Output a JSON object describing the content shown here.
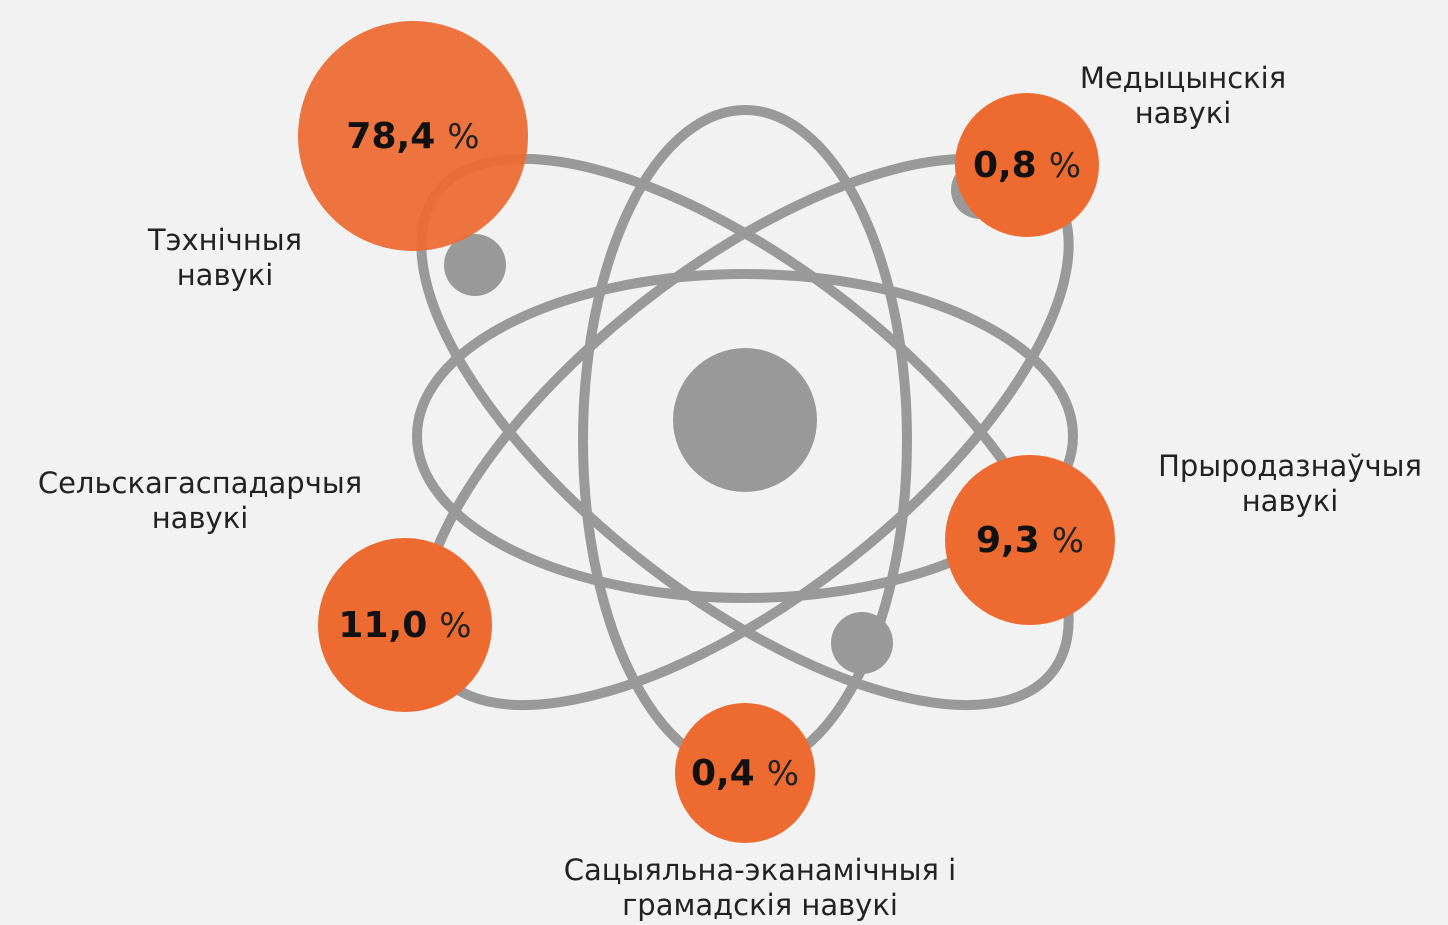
{
  "nodes": [
    {
      "label": [
        "Тэхнічныя",
        "навукі"
      ],
      "value": "78,4",
      "unit": "%"
    },
    {
      "label": [
        "Медыцынскія",
        "навукі"
      ],
      "value": "0,8",
      "unit": "%"
    },
    {
      "label": [
        "Прыродазнаўчыя",
        "навукі"
      ],
      "value": "9,3",
      "unit": "%"
    },
    {
      "label": [
        "Сацыяльна-эканамічныя і",
        "грамадскія навукі"
      ],
      "value": "0,4",
      "unit": "%"
    },
    {
      "label": [
        "Сельскагаспадарчыя",
        "навукі"
      ],
      "value": "11,0",
      "unit": "%"
    }
  ]
}
